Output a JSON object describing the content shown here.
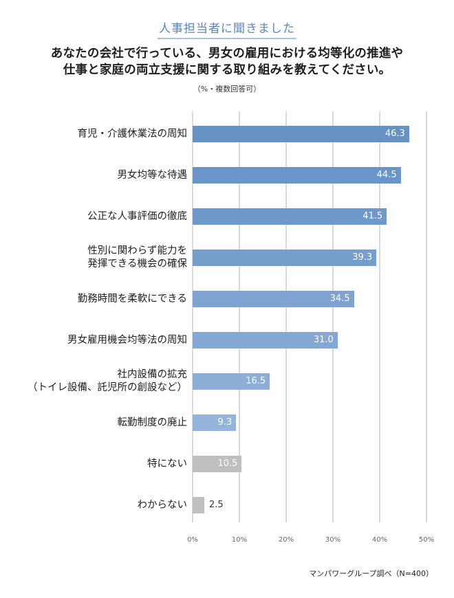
{
  "header": {
    "badge": "人事担当者に聞きました"
  },
  "question": {
    "line1": "あなたの会社で行っている、男女の雇用における均等化の推進や",
    "line2": "仕事と家庭の両立支援に関する取り組みを教えてください。",
    "note": "（%・複数回答可）"
  },
  "source": "マンパワーグループ調べ（N=400）",
  "chart_data": {
    "type": "bar",
    "orientation": "horizontal",
    "title": "あなたの会社で行っている、男女の雇用における均等化の推進や仕事と家庭の両立支援に関する取り組みを教えてください。",
    "subtitle": "（%・複数回答可）",
    "xlabel": "",
    "ylabel": "",
    "xlim": [
      0,
      50
    ],
    "ticks": [
      "0%",
      "10%",
      "20%",
      "30%",
      "40%",
      "50%"
    ],
    "grid": true,
    "legend": null,
    "categories": [
      "育児・介護休業法の周知",
      "男女均等な待遇",
      "公正な人事評価の徹底",
      "性別に関わらず能力を発揮できる機会の確保",
      "勤務時間を柔軟にできる",
      "男女雇用機会均等法の周知",
      "社内設備の拡充（トイレ設備、託児所の創設など）",
      "転勤制度の廃止",
      "特にない",
      "わからない"
    ],
    "values": [
      46.3,
      44.5,
      41.5,
      39.3,
      34.5,
      31.0,
      16.5,
      9.3,
      10.5,
      2.5
    ],
    "value_labels": [
      "46.3",
      "44.5",
      "41.5",
      "39.3",
      "34.5",
      "31.0",
      "16.5",
      "9.3",
      "10.5",
      "2.5"
    ],
    "colors": [
      "#6692c6",
      "#6a95c8",
      "#7099cb",
      "#769ecd",
      "#7ea3d0",
      "#84a8d3",
      "#8daed6",
      "#95b4da",
      "#bfbfbf",
      "#bfbfbf"
    ],
    "source": "マンパワーグループ調べ（N=400）"
  },
  "labels": {
    "c0": [
      "育児・介護休業法の周知"
    ],
    "c1": [
      "男女均等な待遇"
    ],
    "c2": [
      "公正な人事評価の徹底"
    ],
    "c3": [
      "性別に関わらず能力を",
      "発揮できる機会の確保"
    ],
    "c4": [
      "勤務時間を柔軟にできる"
    ],
    "c5": [
      "男女雇用機会均等法の周知"
    ],
    "c6": [
      "社内設備の拡充",
      "（トイレ設備、託児所の創設など）"
    ],
    "c7": [
      "転勤制度の廃止"
    ],
    "c8": [
      "特にない"
    ],
    "c9": [
      "わからない"
    ]
  }
}
